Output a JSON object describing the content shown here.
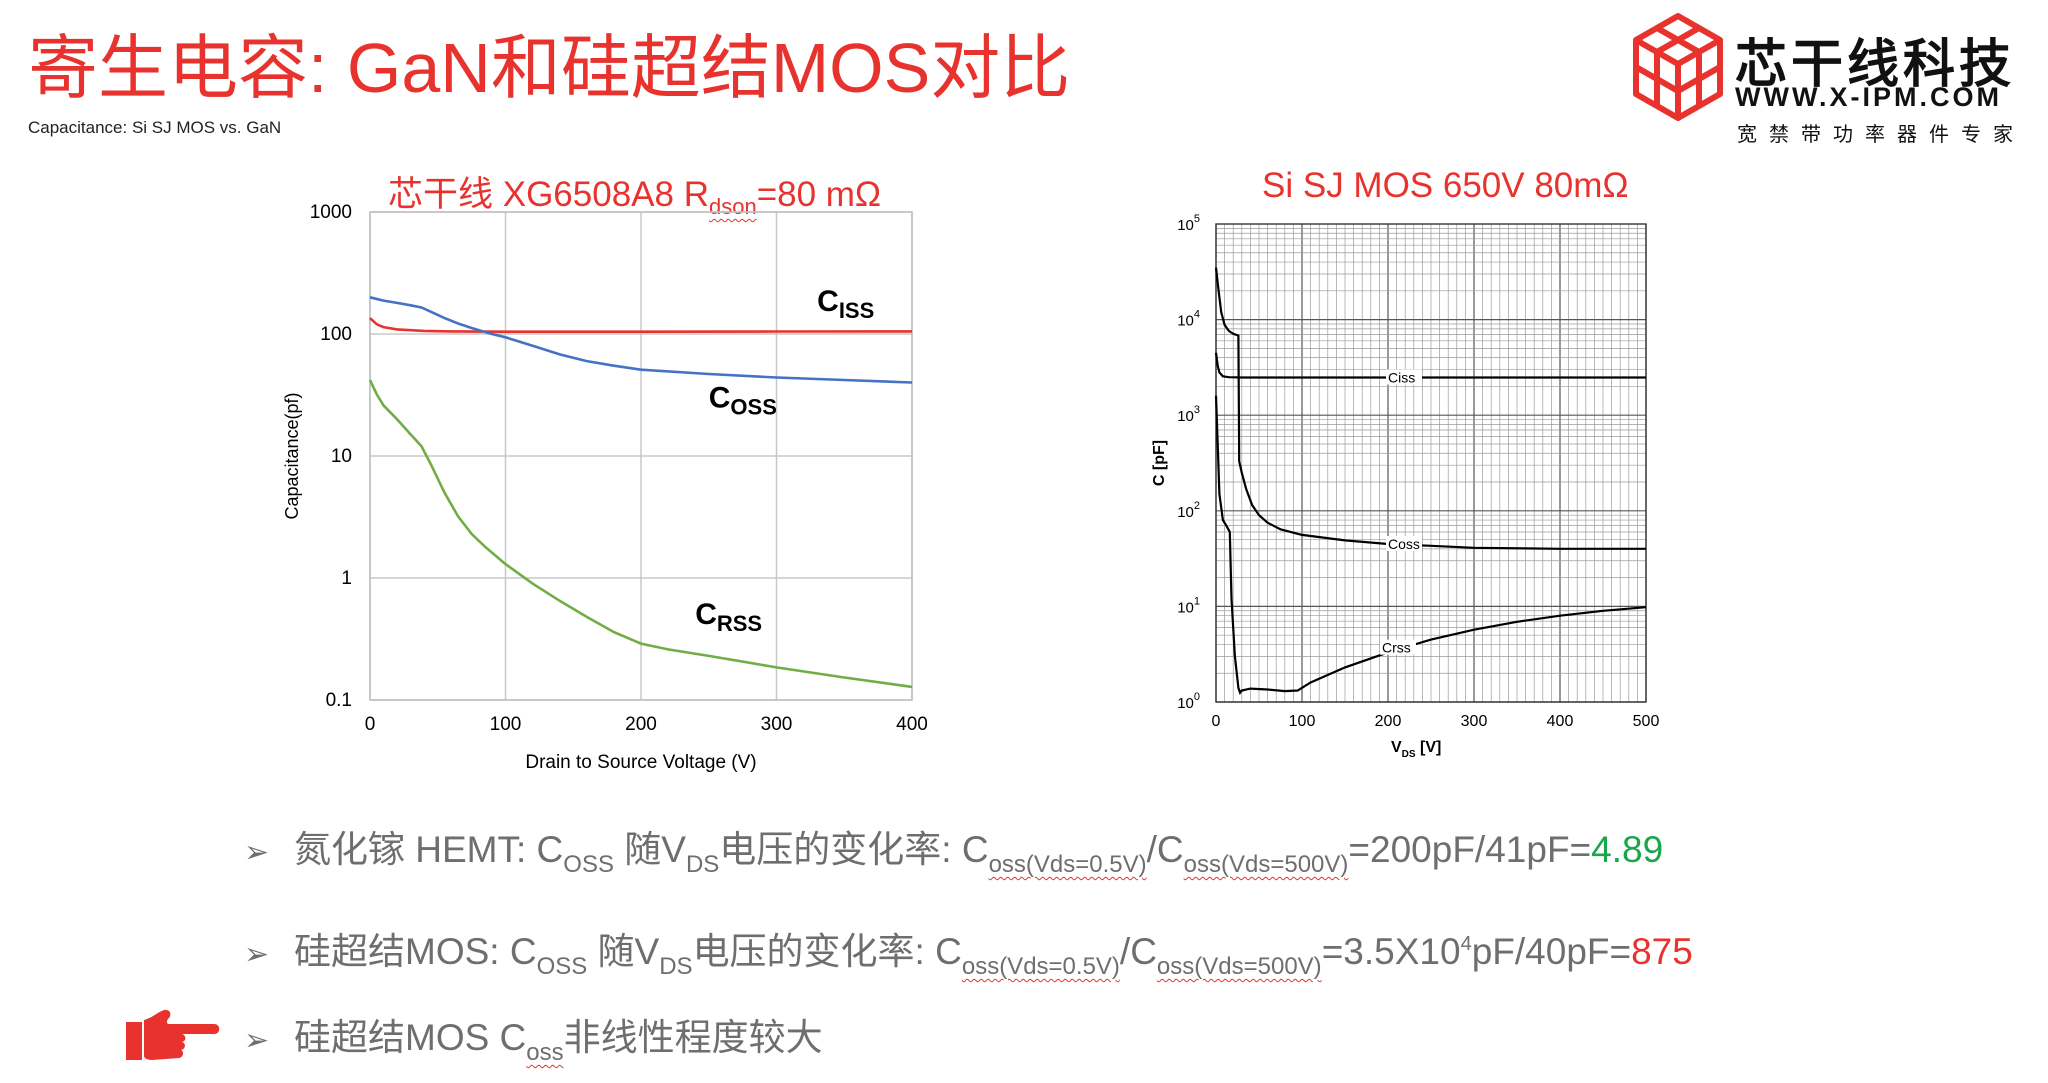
{
  "header": {
    "title": "寄生电容: GaN和硅超结MOS对比",
    "subtitle": "Capacitance: Si SJ MOS vs. GaN"
  },
  "logo": {
    "name": "芯干线科技",
    "url": "WWW.X-IPM.COM",
    "slogan": "宽禁带功率器件专家",
    "color": "#e8322e"
  },
  "chart_data": [
    {
      "type": "line",
      "title": "芯干线 XG6508A8 R",
      "title_sub": "dson",
      "title_suffix": "=80 mΩ",
      "xlabel": "Drain to Source Voltage (V)",
      "ylabel": "Capacitance(pf)",
      "xlim": [
        0,
        400
      ],
      "ylim": [
        0.1,
        1000
      ],
      "yscale": "log",
      "grid": true,
      "xticks": [
        "0",
        "100",
        "200",
        "300",
        "400"
      ],
      "yticks": [
        "0.1",
        "1",
        "10",
        "100",
        "1000"
      ],
      "series": [
        {
          "name": "C",
          "name_sub": "ISS",
          "color": "#e8322e",
          "label_at": [
            330,
            155
          ],
          "points": [
            [
              0,
              135
            ],
            [
              5,
              120
            ],
            [
              10,
              114
            ],
            [
              20,
              109
            ],
            [
              40,
              106
            ],
            [
              60,
              105
            ],
            [
              100,
              104.5
            ],
            [
              200,
              104.5
            ],
            [
              300,
              104.8
            ],
            [
              400,
              105
            ]
          ]
        },
        {
          "name": "C",
          "name_sub": "OSS",
          "color": "#4472c4",
          "label_at": [
            250,
            25
          ],
          "points": [
            [
              0,
              200
            ],
            [
              10,
              188
            ],
            [
              20,
              180
            ],
            [
              30,
              172
            ],
            [
              38,
              165
            ],
            [
              45,
              152
            ],
            [
              55,
              135
            ],
            [
              65,
              122
            ],
            [
              75,
              112
            ],
            [
              90,
              100
            ],
            [
              100,
              94
            ],
            [
              120,
              80
            ],
            [
              140,
              68
            ],
            [
              160,
              60
            ],
            [
              180,
              55
            ],
            [
              200,
              51
            ],
            [
              250,
              47
            ],
            [
              300,
              44
            ],
            [
              350,
              42
            ],
            [
              400,
              40
            ]
          ]
        },
        {
          "name": "C",
          "name_sub": "RSS",
          "color": "#70ad47",
          "label_at": [
            240,
            0.42
          ],
          "points": [
            [
              0,
              42
            ],
            [
              5,
              32
            ],
            [
              10,
              26
            ],
            [
              20,
              20
            ],
            [
              30,
              15
            ],
            [
              38,
              12
            ],
            [
              45,
              8.5
            ],
            [
              55,
              5
            ],
            [
              65,
              3.2
            ],
            [
              75,
              2.3
            ],
            [
              85,
              1.8
            ],
            [
              100,
              1.3
            ],
            [
              120,
              0.9
            ],
            [
              140,
              0.65
            ],
            [
              160,
              0.48
            ],
            [
              180,
              0.36
            ],
            [
              200,
              0.29
            ],
            [
              220,
              0.26
            ],
            [
              250,
              0.23
            ],
            [
              300,
              0.185
            ],
            [
              350,
              0.153
            ],
            [
              400,
              0.128
            ]
          ]
        }
      ]
    },
    {
      "type": "line",
      "title": "Si SJ MOS 650V 80mΩ",
      "xlabel": "V",
      "xlabel_sub": "DS",
      "xlabel_suffix": " [V]",
      "ylabel": "C [pF]",
      "xlim": [
        0,
        500
      ],
      "ylim": [
        1,
        100000
      ],
      "yscale": "log",
      "grid": true,
      "xticks": [
        "0",
        "100",
        "200",
        "300",
        "400",
        "500"
      ],
      "yticks": [
        "10",
        "10",
        "10",
        "10",
        "10",
        "10"
      ],
      "ytick_exponents": [
        "0",
        "1",
        "2",
        "3",
        "4",
        "5"
      ],
      "series": [
        {
          "name": "Ciss",
          "color": "#000000",
          "points": [
            [
              0,
              4500
            ],
            [
              2,
              3300
            ],
            [
              4,
              2800
            ],
            [
              8,
              2550
            ],
            [
              15,
              2500
            ],
            [
              30,
              2480
            ],
            [
              100,
              2480
            ],
            [
              300,
              2480
            ],
            [
              500,
              2480
            ]
          ]
        },
        {
          "name": "Coss",
          "color": "#000000",
          "points": [
            [
              0,
              35000
            ],
            [
              3,
              20000
            ],
            [
              6,
              12000
            ],
            [
              10,
              8800
            ],
            [
              15,
              7600
            ],
            [
              20,
              7100
            ],
            [
              26,
              6800
            ],
            [
              27,
              330
            ],
            [
              30,
              250
            ],
            [
              35,
              170
            ],
            [
              42,
              115
            ],
            [
              50,
              90
            ],
            [
              60,
              75
            ],
            [
              75,
              64
            ],
            [
              100,
              56
            ],
            [
              150,
              49
            ],
            [
              200,
              45
            ],
            [
              250,
              43
            ],
            [
              300,
              41
            ],
            [
              400,
              40
            ],
            [
              500,
              40
            ]
          ]
        },
        {
          "name": "Crss",
          "color": "#000000",
          "points": [
            [
              0,
              1600
            ],
            [
              2,
              500
            ],
            [
              4,
              150
            ],
            [
              8,
              80
            ],
            [
              12,
              70
            ],
            [
              16,
              60
            ],
            [
              18,
              12
            ],
            [
              22,
              3
            ],
            [
              26,
              1.4
            ],
            [
              28,
              1.25
            ],
            [
              30,
              1.32
            ],
            [
              40,
              1.38
            ],
            [
              60,
              1.35
            ],
            [
              80,
              1.3
            ],
            [
              95,
              1.32
            ],
            [
              110,
              1.6
            ],
            [
              150,
              2.3
            ],
            [
              200,
              3.3
            ],
            [
              250,
              4.5
            ],
            [
              300,
              5.7
            ],
            [
              350,
              6.9
            ],
            [
              400,
              8
            ],
            [
              450,
              9
            ],
            [
              500,
              9.8
            ]
          ]
        }
      ]
    }
  ],
  "bullets": [
    {
      "marker": "➢",
      "parts": [
        {
          "t": "氮化镓 HEMT: C"
        },
        {
          "t": "OSS",
          "sub": true
        },
        {
          "t": " 随V"
        },
        {
          "t": "DS",
          "sub": true
        },
        {
          "t": "电压的变化率: C"
        },
        {
          "t": "oss(Vds=0.5V)",
          "sub": true,
          "ul": true
        },
        {
          "t": "/C"
        },
        {
          "t": "oss(Vds=500V)",
          "sub": true,
          "ul": true
        },
        {
          "t": "=200pF/41pF="
        },
        {
          "t": "4.89",
          "cls": "green"
        }
      ]
    },
    {
      "marker": "➢",
      "parts": [
        {
          "t": "硅超结MOS: C"
        },
        {
          "t": "OSS",
          "sub": true
        },
        {
          "t": " 随V"
        },
        {
          "t": "DS",
          "sub": true
        },
        {
          "t": "电压的变化率: C"
        },
        {
          "t": "oss(Vds=0.5V)",
          "sub": true,
          "ul": true
        },
        {
          "t": "/C"
        },
        {
          "t": "oss(Vds=500V)",
          "sub": true,
          "ul": true
        },
        {
          "t": "=3.5X10"
        },
        {
          "t": "4",
          "sup": true
        },
        {
          "t": "pF/40pF="
        },
        {
          "t": "875",
          "cls": "red"
        }
      ]
    },
    {
      "marker": "➢",
      "parts": [
        {
          "t": "硅超结MOS C"
        },
        {
          "t": "oss",
          "sub": true,
          "ul": true
        },
        {
          "t": "非线性程度较大"
        }
      ]
    }
  ],
  "pointer": {
    "icon": "pointing-hand-icon",
    "color": "#e8322e"
  }
}
